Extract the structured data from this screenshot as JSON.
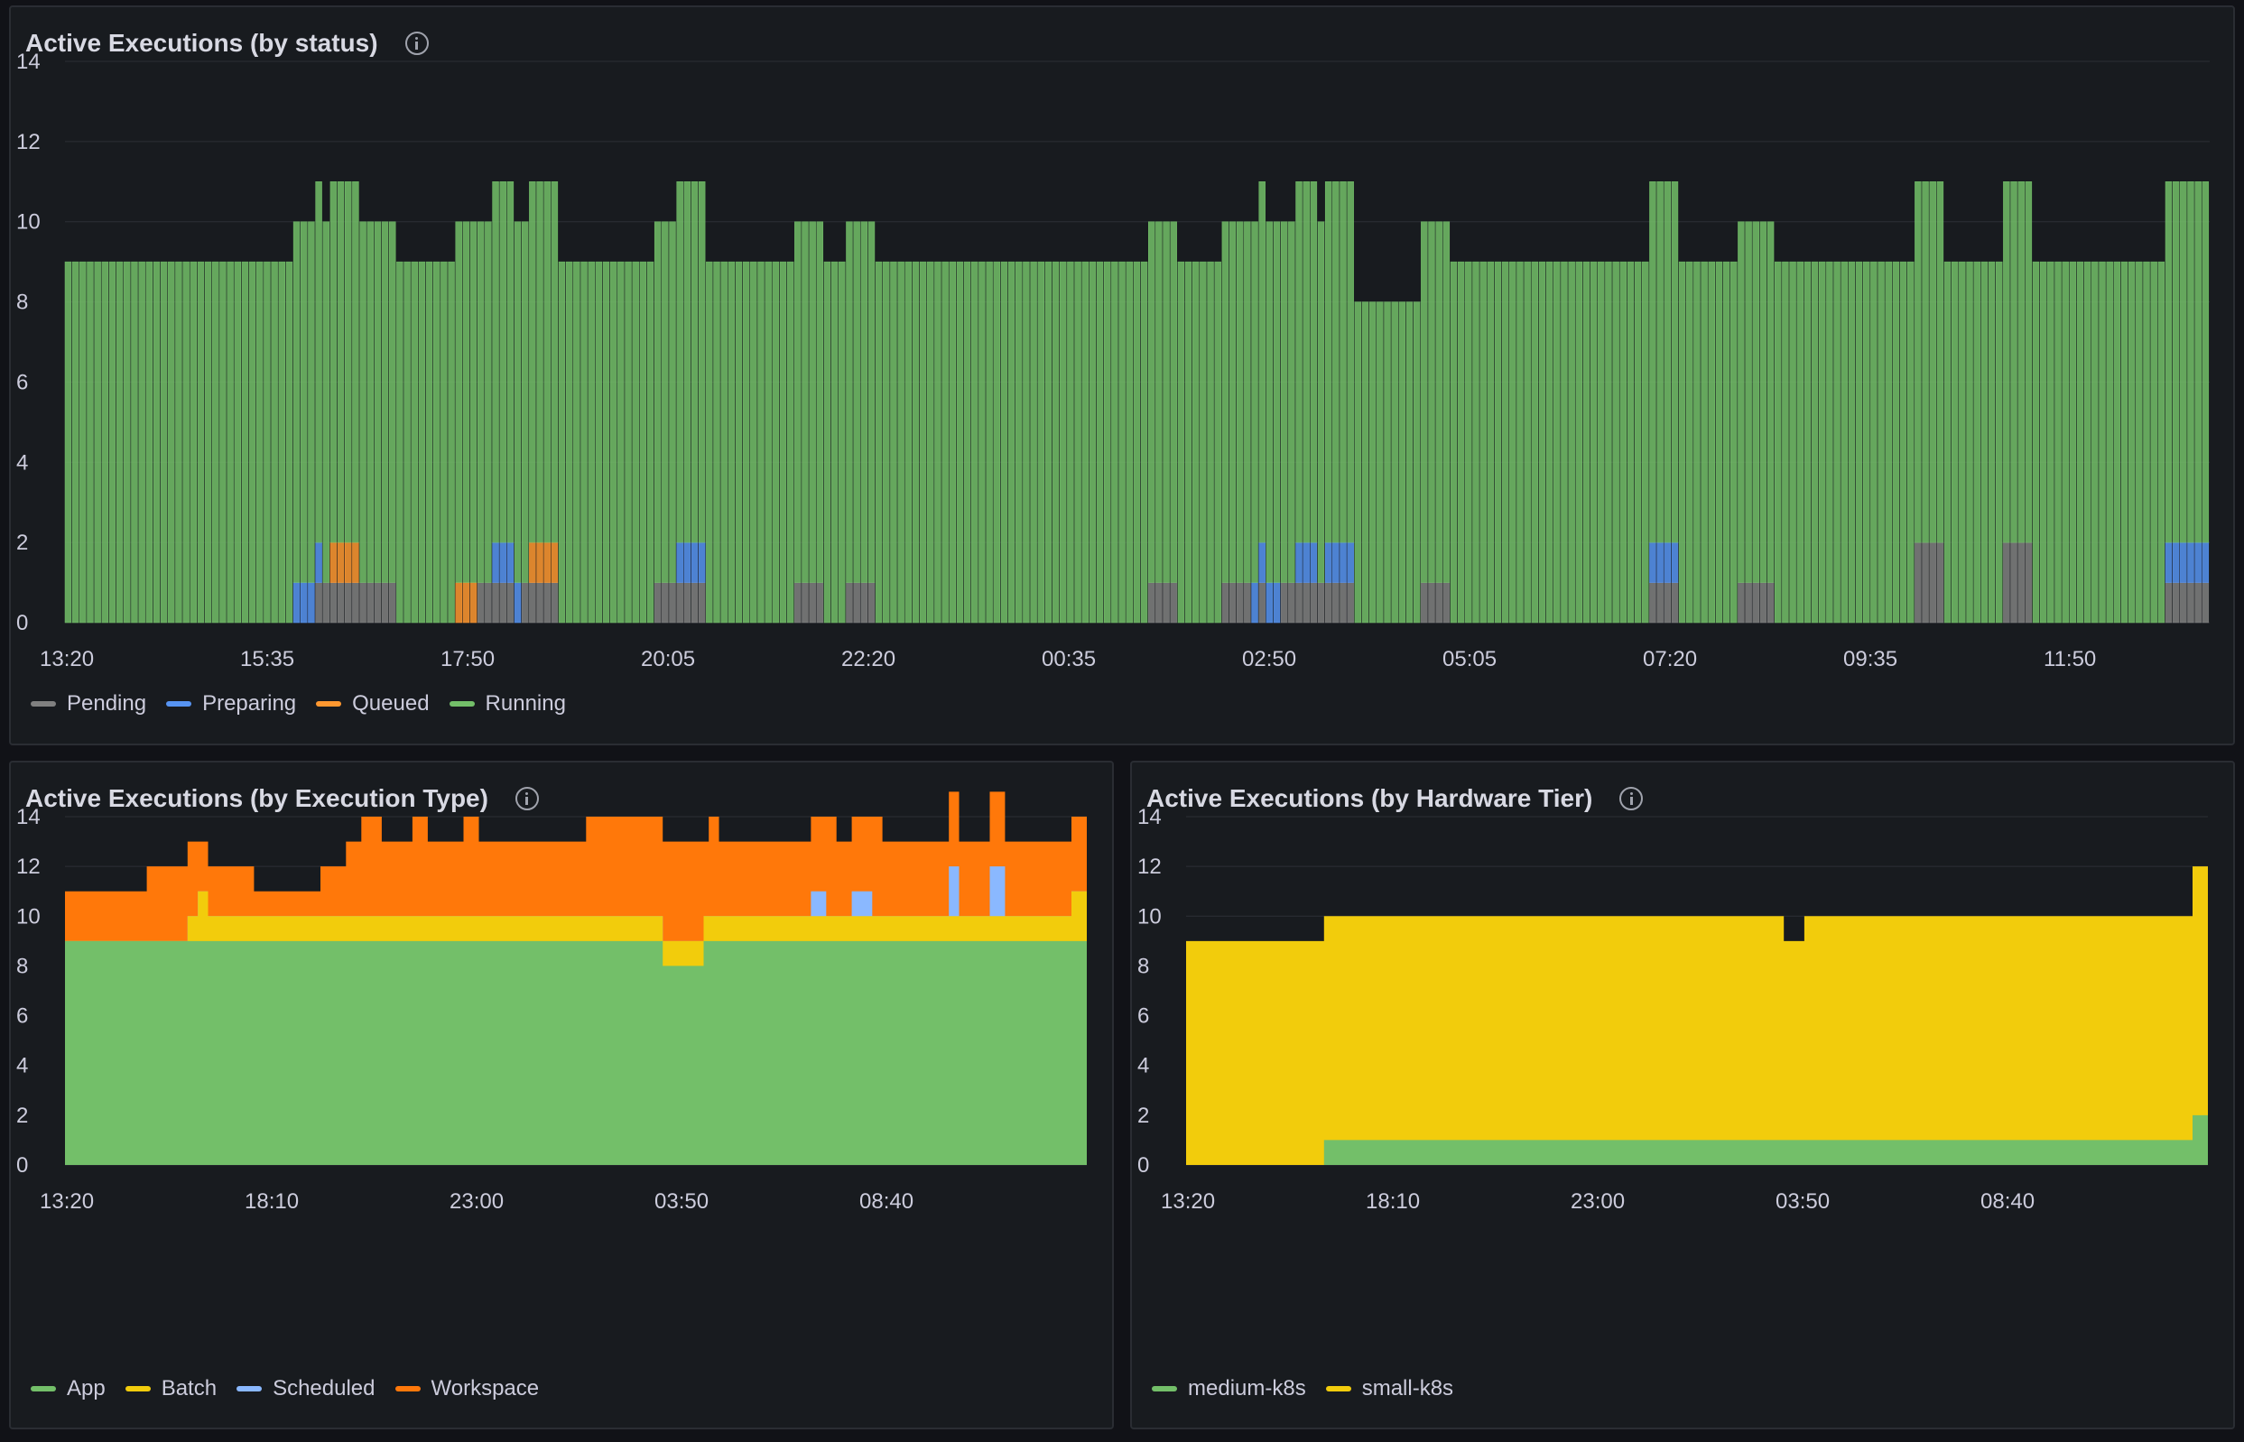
{
  "panels": {
    "status": {
      "title": "Active Executions (by status)",
      "legend": [
        {
          "label": "Pending",
          "color": "#808080"
        },
        {
          "label": "Preparing",
          "color": "#5794f2"
        },
        {
          "label": "Queued",
          "color": "#ff9830"
        },
        {
          "label": "Running",
          "color": "#73bf69"
        }
      ]
    },
    "type": {
      "title": "Active Executions (by Execution Type)",
      "legend": [
        {
          "label": "App",
          "color": "#73bf69"
        },
        {
          "label": "Batch",
          "color": "#f2cc0c"
        },
        {
          "label": "Scheduled",
          "color": "#8ab8ff"
        },
        {
          "label": "Workspace",
          "color": "#ff780a"
        }
      ]
    },
    "tier": {
      "title": "Active Executions (by Hardware Tier)",
      "legend": [
        {
          "label": "medium-k8s",
          "color": "#73bf69"
        },
        {
          "label": "small-k8s",
          "color": "#f2cc0c"
        }
      ]
    }
  },
  "chart_data": [
    {
      "id": "status",
      "type": "bar",
      "stacked": true,
      "x_tick_labels": [
        "13:20",
        "15:35",
        "17:50",
        "20:05",
        "22:20",
        "00:35",
        "02:50",
        "05:05",
        "07:20",
        "09:35",
        "11:50"
      ],
      "y_ticks": [
        0,
        2,
        4,
        6,
        8,
        10,
        12,
        14
      ],
      "ylim": [
        0,
        14
      ],
      "grid": true,
      "legend_position": "bottom-left",
      "bucket_count": 288,
      "segments": [
        {
          "start": 0,
          "end": 30,
          "Running": 9
        },
        {
          "start": 31,
          "end": 32,
          "Running": 9,
          "Preparing": 1
        },
        {
          "start": 33,
          "end": 33,
          "Running": 9,
          "Preparing": 1,
          "Pending": 0
        },
        {
          "start": 34,
          "end": 34,
          "Running": 9,
          "Preparing": 1,
          "Pending": 1
        },
        {
          "start": 35,
          "end": 35,
          "Running": 9,
          "Pending": 1
        },
        {
          "start": 36,
          "end": 39,
          "Running": 9,
          "Pending": 1,
          "Queued": 1
        },
        {
          "start": 40,
          "end": 44,
          "Running": 9,
          "Pending": 1
        },
        {
          "start": 45,
          "end": 52,
          "Running": 9
        },
        {
          "start": 53,
          "end": 55,
          "Running": 9,
          "Queued": 1
        },
        {
          "start": 56,
          "end": 57,
          "Running": 9,
          "Pending": 1,
          "Queued": 0
        },
        {
          "start": 58,
          "end": 60,
          "Running": 9,
          "Pending": 1,
          "Preparing": 1
        },
        {
          "start": 61,
          "end": 61,
          "Running": 9,
          "Preparing": 1
        },
        {
          "start": 62,
          "end": 62,
          "Running": 9,
          "Pending": 1
        },
        {
          "start": 63,
          "end": 66,
          "Running": 9,
          "Pending": 1,
          "Queued": 1
        },
        {
          "start": 67,
          "end": 79,
          "Running": 9
        },
        {
          "start": 80,
          "end": 82,
          "Running": 9,
          "Pending": 1
        },
        {
          "start": 83,
          "end": 86,
          "Running": 9,
          "Pending": 1,
          "Preparing": 1
        },
        {
          "start": 87,
          "end": 98,
          "Running": 9
        },
        {
          "start": 99,
          "end": 102,
          "Running": 9,
          "Pending": 1
        },
        {
          "start": 103,
          "end": 105,
          "Running": 9
        },
        {
          "start": 106,
          "end": 109,
          "Running": 9,
          "Pending": 1
        },
        {
          "start": 110,
          "end": 146,
          "Running": 9
        },
        {
          "start": 147,
          "end": 150,
          "Running": 9,
          "Pending": 1
        },
        {
          "start": 151,
          "end": 156,
          "Running": 9
        },
        {
          "start": 157,
          "end": 160,
          "Running": 9,
          "Pending": 1
        },
        {
          "start": 161,
          "end": 161,
          "Running": 9,
          "Preparing": 1
        },
        {
          "start": 162,
          "end": 162,
          "Running": 9,
          "Preparing": 1,
          "Pending": 1
        },
        {
          "start": 163,
          "end": 164,
          "Running": 9,
          "Preparing": 1
        },
        {
          "start": 165,
          "end": 166,
          "Running": 9,
          "Pending": 1
        },
        {
          "start": 167,
          "end": 169,
          "Running": 9,
          "Pending": 1,
          "Preparing": 1
        },
        {
          "start": 170,
          "end": 170,
          "Running": 9,
          "Pending": 1
        },
        {
          "start": 171,
          "end": 174,
          "Running": 9,
          "Pending": 1,
          "Preparing": 1
        },
        {
          "start": 175,
          "end": 183,
          "Running": 8
        },
        {
          "start": 184,
          "end": 187,
          "Running": 9,
          "Pending": 1
        },
        {
          "start": 188,
          "end": 214,
          "Running": 9
        },
        {
          "start": 215,
          "end": 218,
          "Running": 9,
          "Pending": 1,
          "Preparing": 1
        },
        {
          "start": 219,
          "end": 226,
          "Running": 9
        },
        {
          "start": 227,
          "end": 231,
          "Running": 9,
          "Pending": 1
        },
        {
          "start": 232,
          "end": 250,
          "Running": 9
        },
        {
          "start": 251,
          "end": 254,
          "Running": 9,
          "Pending": 2
        },
        {
          "start": 255,
          "end": 262,
          "Running": 9
        },
        {
          "start": 263,
          "end": 266,
          "Running": 9,
          "Pending": 2
        },
        {
          "start": 267,
          "end": 284,
          "Running": 9
        },
        {
          "start": 285,
          "end": 288,
          "Running": 9,
          "Pending": 1,
          "Preparing": 1
        },
        {
          "start": 289,
          "end": 290,
          "Running": 9,
          "Pending": 1,
          "Preparing": 1
        }
      ]
    },
    {
      "id": "type",
      "type": "area",
      "stacked": true,
      "x_tick_labels": [
        "13:20",
        "18:10",
        "23:00",
        "03:50",
        "08:40"
      ],
      "y_ticks": [
        0,
        2,
        4,
        6,
        8,
        10,
        12,
        14
      ],
      "ylim": [
        0,
        14
      ],
      "grid": true,
      "legend_position": "bottom-left",
      "steps": [
        {
          "t": 0.0,
          "App": 9,
          "Batch": 0,
          "Scheduled": 0,
          "Workspace": 2
        },
        {
          "t": 0.08,
          "App": 9,
          "Batch": 0,
          "Scheduled": 0,
          "Workspace": 3
        },
        {
          "t": 0.12,
          "App": 9,
          "Batch": 1,
          "Scheduled": 0,
          "Workspace": 2
        },
        {
          "t": 0.12,
          "App": 9,
          "Batch": 1,
          "Scheduled": 0,
          "Workspace": 3
        },
        {
          "t": 0.13,
          "App": 9,
          "Batch": 2,
          "Scheduled": 0,
          "Workspace": 2
        },
        {
          "t": 0.14,
          "App": 9,
          "Batch": 1,
          "Scheduled": 0,
          "Workspace": 2
        },
        {
          "t": 0.185,
          "App": 9,
          "Batch": 1,
          "Scheduled": 0,
          "Workspace": 1
        },
        {
          "t": 0.25,
          "App": 9,
          "Batch": 1,
          "Scheduled": 0,
          "Workspace": 2
        },
        {
          "t": 0.275,
          "App": 9,
          "Batch": 1,
          "Scheduled": 0,
          "Workspace": 3
        },
        {
          "t": 0.29,
          "App": 9,
          "Batch": 1,
          "Scheduled": 0,
          "Workspace": 4
        },
        {
          "t": 0.31,
          "App": 9,
          "Batch": 1,
          "Scheduled": 0,
          "Workspace": 3
        },
        {
          "t": 0.34,
          "App": 9,
          "Batch": 1,
          "Scheduled": 0,
          "Workspace": 4
        },
        {
          "t": 0.355,
          "App": 9,
          "Batch": 1,
          "Scheduled": 0,
          "Workspace": 3
        },
        {
          "t": 0.39,
          "App": 9,
          "Batch": 1,
          "Scheduled": 0,
          "Workspace": 4
        },
        {
          "t": 0.405,
          "App": 9,
          "Batch": 1,
          "Scheduled": 0,
          "Workspace": 3
        },
        {
          "t": 0.51,
          "App": 9,
          "Batch": 1,
          "Scheduled": 0,
          "Workspace": 4
        },
        {
          "t": 0.585,
          "App": 8,
          "Batch": 1,
          "Scheduled": 0,
          "Workspace": 4
        },
        {
          "t": 0.625,
          "App": 9,
          "Batch": 1,
          "Scheduled": 0,
          "Workspace": 3
        },
        {
          "t": 0.63,
          "App": 9,
          "Batch": 1,
          "Scheduled": 0,
          "Workspace": 4
        },
        {
          "t": 0.64,
          "App": 9,
          "Batch": 1,
          "Scheduled": 0,
          "Workspace": 3
        },
        {
          "t": 0.73,
          "App": 9,
          "Batch": 1,
          "Scheduled": 1,
          "Workspace": 3
        },
        {
          "t": 0.745,
          "App": 9,
          "Batch": 1,
          "Scheduled": 0,
          "Workspace": 4
        },
        {
          "t": 0.755,
          "App": 9,
          "Batch": 1,
          "Scheduled": 0,
          "Workspace": 3
        },
        {
          "t": 0.77,
          "App": 9,
          "Batch": 1,
          "Scheduled": 1,
          "Workspace": 3
        },
        {
          "t": 0.79,
          "App": 9,
          "Batch": 1,
          "Scheduled": 0,
          "Workspace": 4
        },
        {
          "t": 0.8,
          "App": 9,
          "Batch": 1,
          "Scheduled": 0,
          "Workspace": 3
        },
        {
          "t": 0.865,
          "App": 9,
          "Batch": 1,
          "Scheduled": 2,
          "Workspace": 3
        },
        {
          "t": 0.875,
          "App": 9,
          "Batch": 1,
          "Scheduled": 0,
          "Workspace": 3
        },
        {
          "t": 0.905,
          "App": 9,
          "Batch": 1,
          "Scheduled": 2,
          "Workspace": 3
        },
        {
          "t": 0.92,
          "App": 9,
          "Batch": 1,
          "Scheduled": 0,
          "Workspace": 3
        },
        {
          "t": 0.985,
          "App": 9,
          "Batch": 2,
          "Scheduled": 0,
          "Workspace": 3
        },
        {
          "t": 1.0,
          "App": 10,
          "Batch": 1,
          "Scheduled": 0,
          "Workspace": 3
        }
      ]
    },
    {
      "id": "tier",
      "type": "area",
      "stacked": true,
      "x_tick_labels": [
        "13:20",
        "18:10",
        "23:00",
        "03:50",
        "08:40"
      ],
      "y_ticks": [
        0,
        2,
        4,
        6,
        8,
        10,
        12,
        14
      ],
      "ylim": [
        0,
        14
      ],
      "grid": true,
      "legend_position": "bottom-left",
      "steps": [
        {
          "t": 0.0,
          "medium-k8s": 0,
          "small-k8s": 9
        },
        {
          "t": 0.135,
          "medium-k8s": 1,
          "small-k8s": 9
        },
        {
          "t": 0.585,
          "medium-k8s": 1,
          "small-k8s": 8
        },
        {
          "t": 0.605,
          "medium-k8s": 1,
          "small-k8s": 9
        },
        {
          "t": 0.985,
          "medium-k8s": 2,
          "small-k8s": 10
        },
        {
          "t": 1.0,
          "medium-k8s": 2,
          "small-k8s": 10
        }
      ]
    }
  ]
}
